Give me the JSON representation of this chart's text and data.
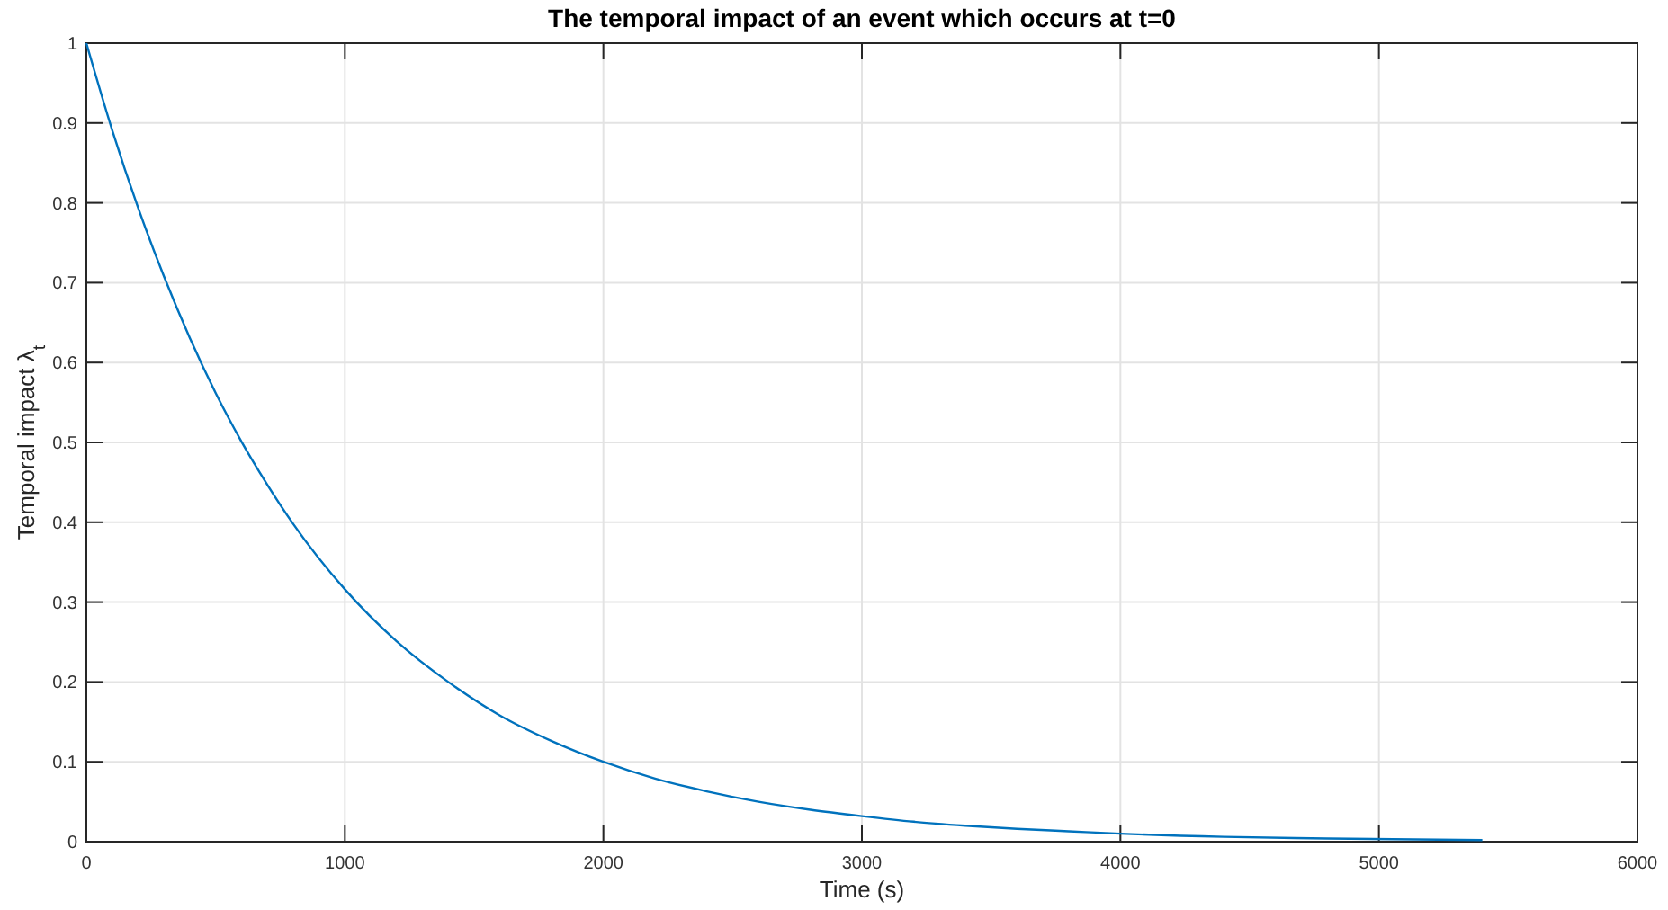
{
  "chart_data": {
    "type": "line",
    "title": "The temporal impact of an event which occurs at t=0",
    "xlabel": "Time (s)",
    "ylabel": "Temporal impact λ$_{t}$",
    "x": [
      0,
      100,
      200,
      300,
      400,
      500,
      600,
      700,
      800,
      1000,
      1200,
      1400,
      1600,
      1800,
      2000,
      2200,
      2400,
      2600,
      2800,
      3000,
      3200,
      3400,
      3600,
      3800,
      4000,
      4400,
      4800,
      5400
    ],
    "series": [
      {
        "color": "#0072bd",
        "values": [
          1,
          0.891,
          0.794,
          0.708,
          0.631,
          0.562,
          0.501,
          0.447,
          0.398,
          0.316,
          0.251,
          0.2,
          0.158,
          0.126,
          0.1,
          0.079,
          0.063,
          0.05,
          0.04,
          0.032,
          0.025,
          0.02,
          0.016,
          0.013,
          0.01,
          0.006,
          0.004,
          0.002
        ]
      }
    ],
    "xlim": [
      0,
      6000
    ],
    "xticks": [
      0,
      1000,
      2000,
      3000,
      4000,
      5000,
      6000
    ],
    "ylim": [
      0,
      1
    ],
    "yticks": [
      0,
      0.1,
      0.2,
      0.3,
      0.4,
      0.5,
      0.6,
      0.7,
      0.8,
      0.9,
      1
    ],
    "grid": true,
    "marker": "none",
    "line_style": "solid"
  }
}
